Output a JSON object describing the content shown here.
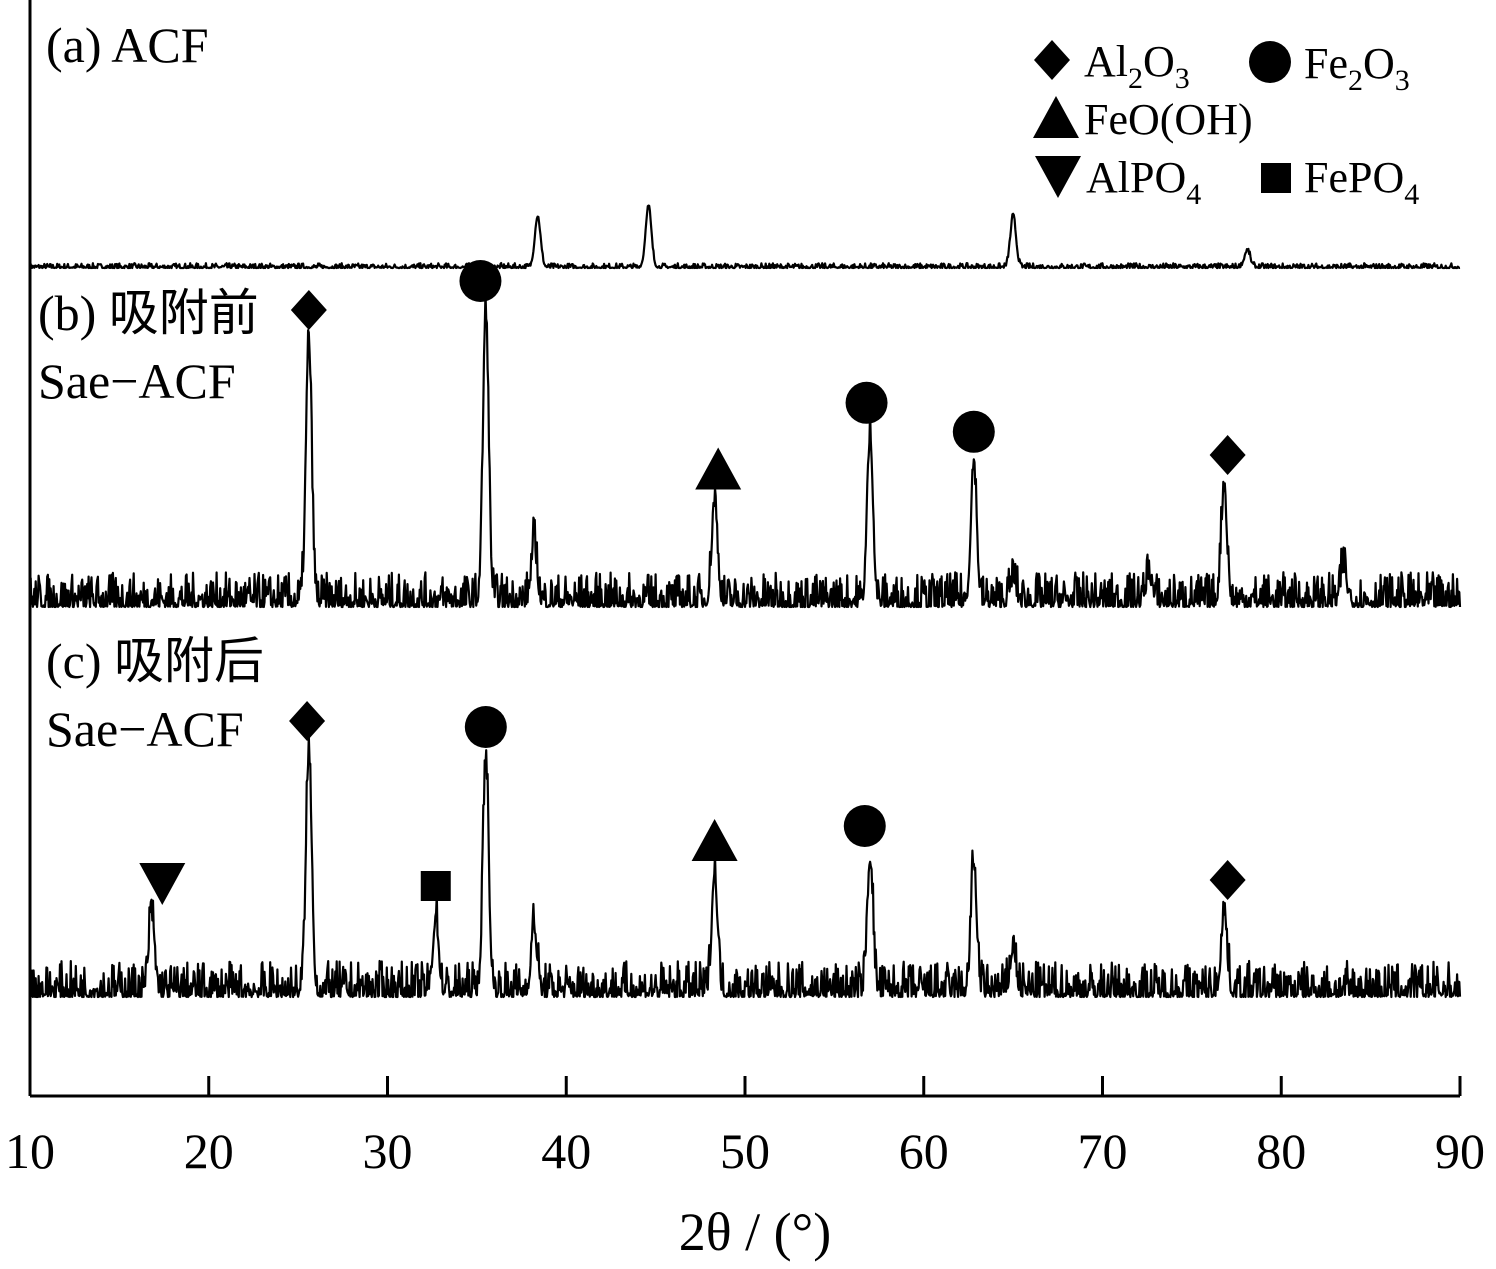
{
  "chart_data": {
    "type": "line",
    "xlabel": "2θ / (°)",
    "xlim": [
      10,
      90
    ],
    "xticks": [
      "10",
      "20",
      "30",
      "40",
      "50",
      "60",
      "70",
      "80",
      "90"
    ],
    "grid": false,
    "legend_placement": "top-right",
    "legend": [
      {
        "marker": "diamond",
        "label": "Al2O3",
        "main": "Al",
        "sub1": "2",
        "mid": "O",
        "sub2": "3"
      },
      {
        "marker": "circle",
        "label": "Fe2O3",
        "main": "Fe",
        "sub1": "2",
        "mid": "O",
        "sub2": "3"
      },
      {
        "marker": "triangle-up",
        "label": "FeO(OH)",
        "main": "FeO(OH)",
        "sub1": "",
        "mid": "",
        "sub2": ""
      },
      {
        "marker": "triangle-down",
        "label": "AlPO4",
        "main": "AlPO",
        "sub1": "4",
        "mid": "",
        "sub2": ""
      },
      {
        "marker": "square",
        "label": "FePO4",
        "main": "FePO",
        "sub1": "4",
        "mid": "",
        "sub2": ""
      }
    ],
    "series": [
      {
        "name": "(a) ACF",
        "label_lines": [
          "(a) ACF"
        ],
        "noise": 0.12,
        "peaks": [
          {
            "x": 38.4,
            "h": 1.5
          },
          {
            "x": 44.6,
            "h": 1.8
          },
          {
            "x": 65.0,
            "h": 1.5
          },
          {
            "x": 78.1,
            "h": 0.5
          }
        ],
        "markers": []
      },
      {
        "name": "(b) 吸附前 Sae−ACF",
        "label_lines": [
          "(b) 吸附前",
          "Sae−ACF"
        ],
        "noise": 0.4,
        "peaks": [
          {
            "x": 25.6,
            "h": 9.0
          },
          {
            "x": 35.5,
            "h": 10.0
          },
          {
            "x": 38.2,
            "h": 2.0
          },
          {
            "x": 48.3,
            "h": 3.5
          },
          {
            "x": 57.0,
            "h": 5.8
          },
          {
            "x": 62.8,
            "h": 4.8
          },
          {
            "x": 65.0,
            "h": 0.8
          },
          {
            "x": 72.6,
            "h": 1.0
          },
          {
            "x": 76.8,
            "h": 4.0
          },
          {
            "x": 83.5,
            "h": 1.2
          }
        ],
        "markers": [
          {
            "x": 25.6,
            "type": "diamond"
          },
          {
            "x": 35.2,
            "type": "circle"
          },
          {
            "x": 48.5,
            "type": "triangle-up"
          },
          {
            "x": 56.8,
            "type": "circle"
          },
          {
            "x": 62.8,
            "type": "circle"
          },
          {
            "x": 77.0,
            "type": "diamond"
          }
        ]
      },
      {
        "name": "(c) 吸附后 Sae−ACF",
        "label_lines": [
          "(c) 吸附后",
          "Sae−ACF"
        ],
        "noise": 0.4,
        "peaks": [
          {
            "x": 16.8,
            "h": 2.6
          },
          {
            "x": 25.6,
            "h": 8.0
          },
          {
            "x": 32.7,
            "h": 2.5
          },
          {
            "x": 35.5,
            "h": 7.8
          },
          {
            "x": 38.2,
            "h": 2.2
          },
          {
            "x": 48.3,
            "h": 4.0
          },
          {
            "x": 57.0,
            "h": 4.5
          },
          {
            "x": 62.8,
            "h": 4.3
          },
          {
            "x": 65.0,
            "h": 1.5
          },
          {
            "x": 76.8,
            "h": 2.7
          }
        ],
        "markers": [
          {
            "x": 17.4,
            "type": "triangle-down"
          },
          {
            "x": 25.5,
            "type": "diamond"
          },
          {
            "x": 32.7,
            "type": "square"
          },
          {
            "x": 35.5,
            "type": "circle"
          },
          {
            "x": 48.3,
            "type": "triangle-up"
          },
          {
            "x": 56.7,
            "type": "circle"
          },
          {
            "x": 77.0,
            "type": "diamond"
          }
        ]
      }
    ]
  }
}
